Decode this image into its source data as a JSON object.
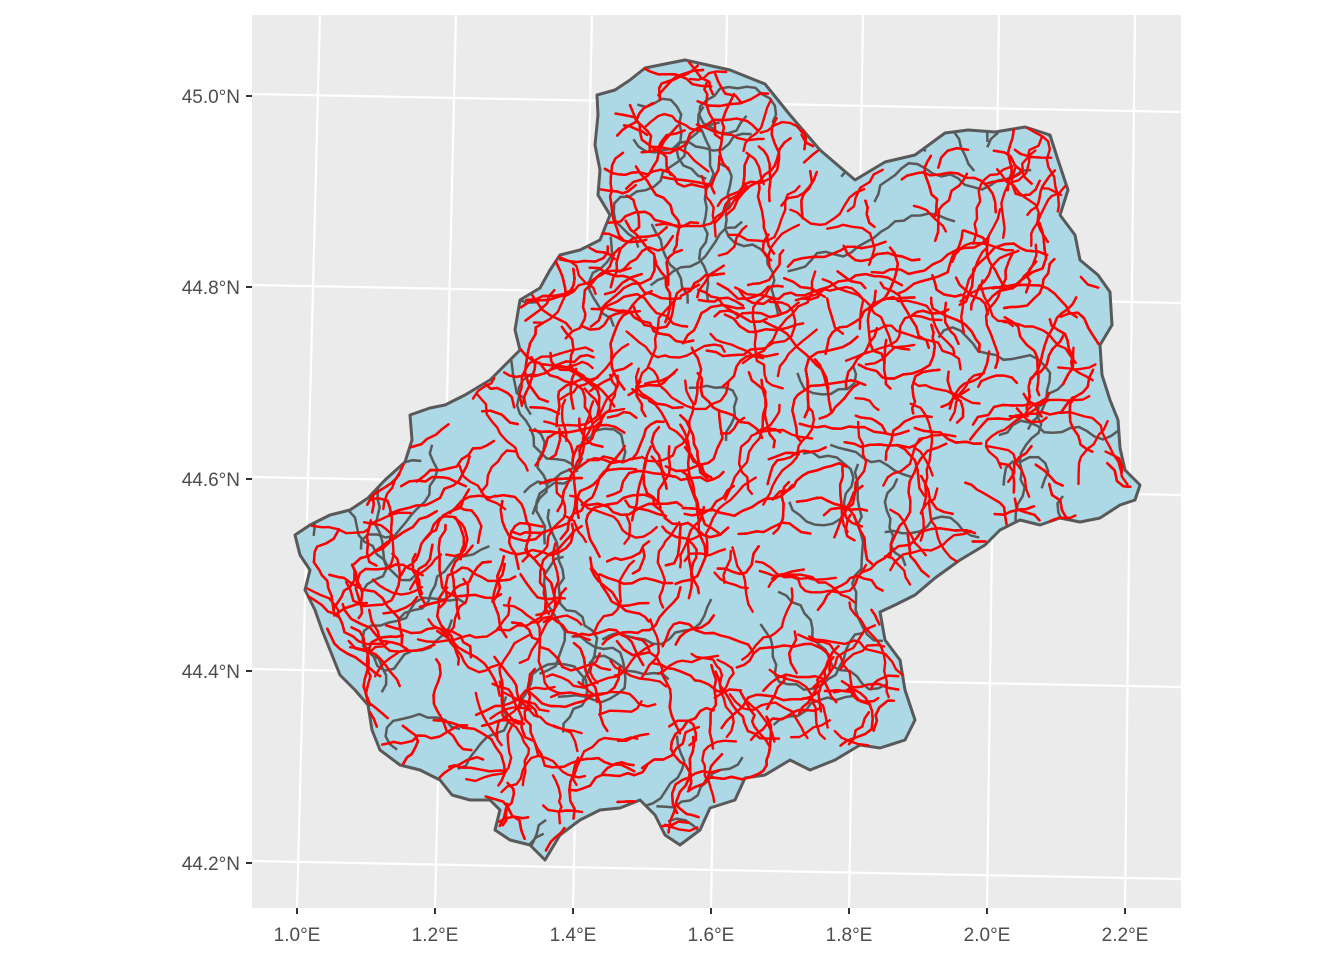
{
  "map": {
    "x_axis": {
      "ticks": [
        "1.0°E",
        "1.2°E",
        "1.4°E",
        "1.6°E",
        "1.8°E",
        "2.0°E",
        "2.2°E"
      ]
    },
    "y_axis": {
      "ticks": [
        "45.0°N",
        "44.8°N",
        "44.6°N",
        "44.4°N",
        "44.2°N"
      ]
    },
    "colors": {
      "panel_background": "#ebebeb",
      "grid": "#ffffff",
      "region_fill": "#add8e6",
      "region_border": "#595959",
      "road_network": "#ff0000",
      "axis_text": "#4d4d4d"
    },
    "layers": [
      "region-polygon",
      "internal-boundaries",
      "road-network"
    ]
  }
}
